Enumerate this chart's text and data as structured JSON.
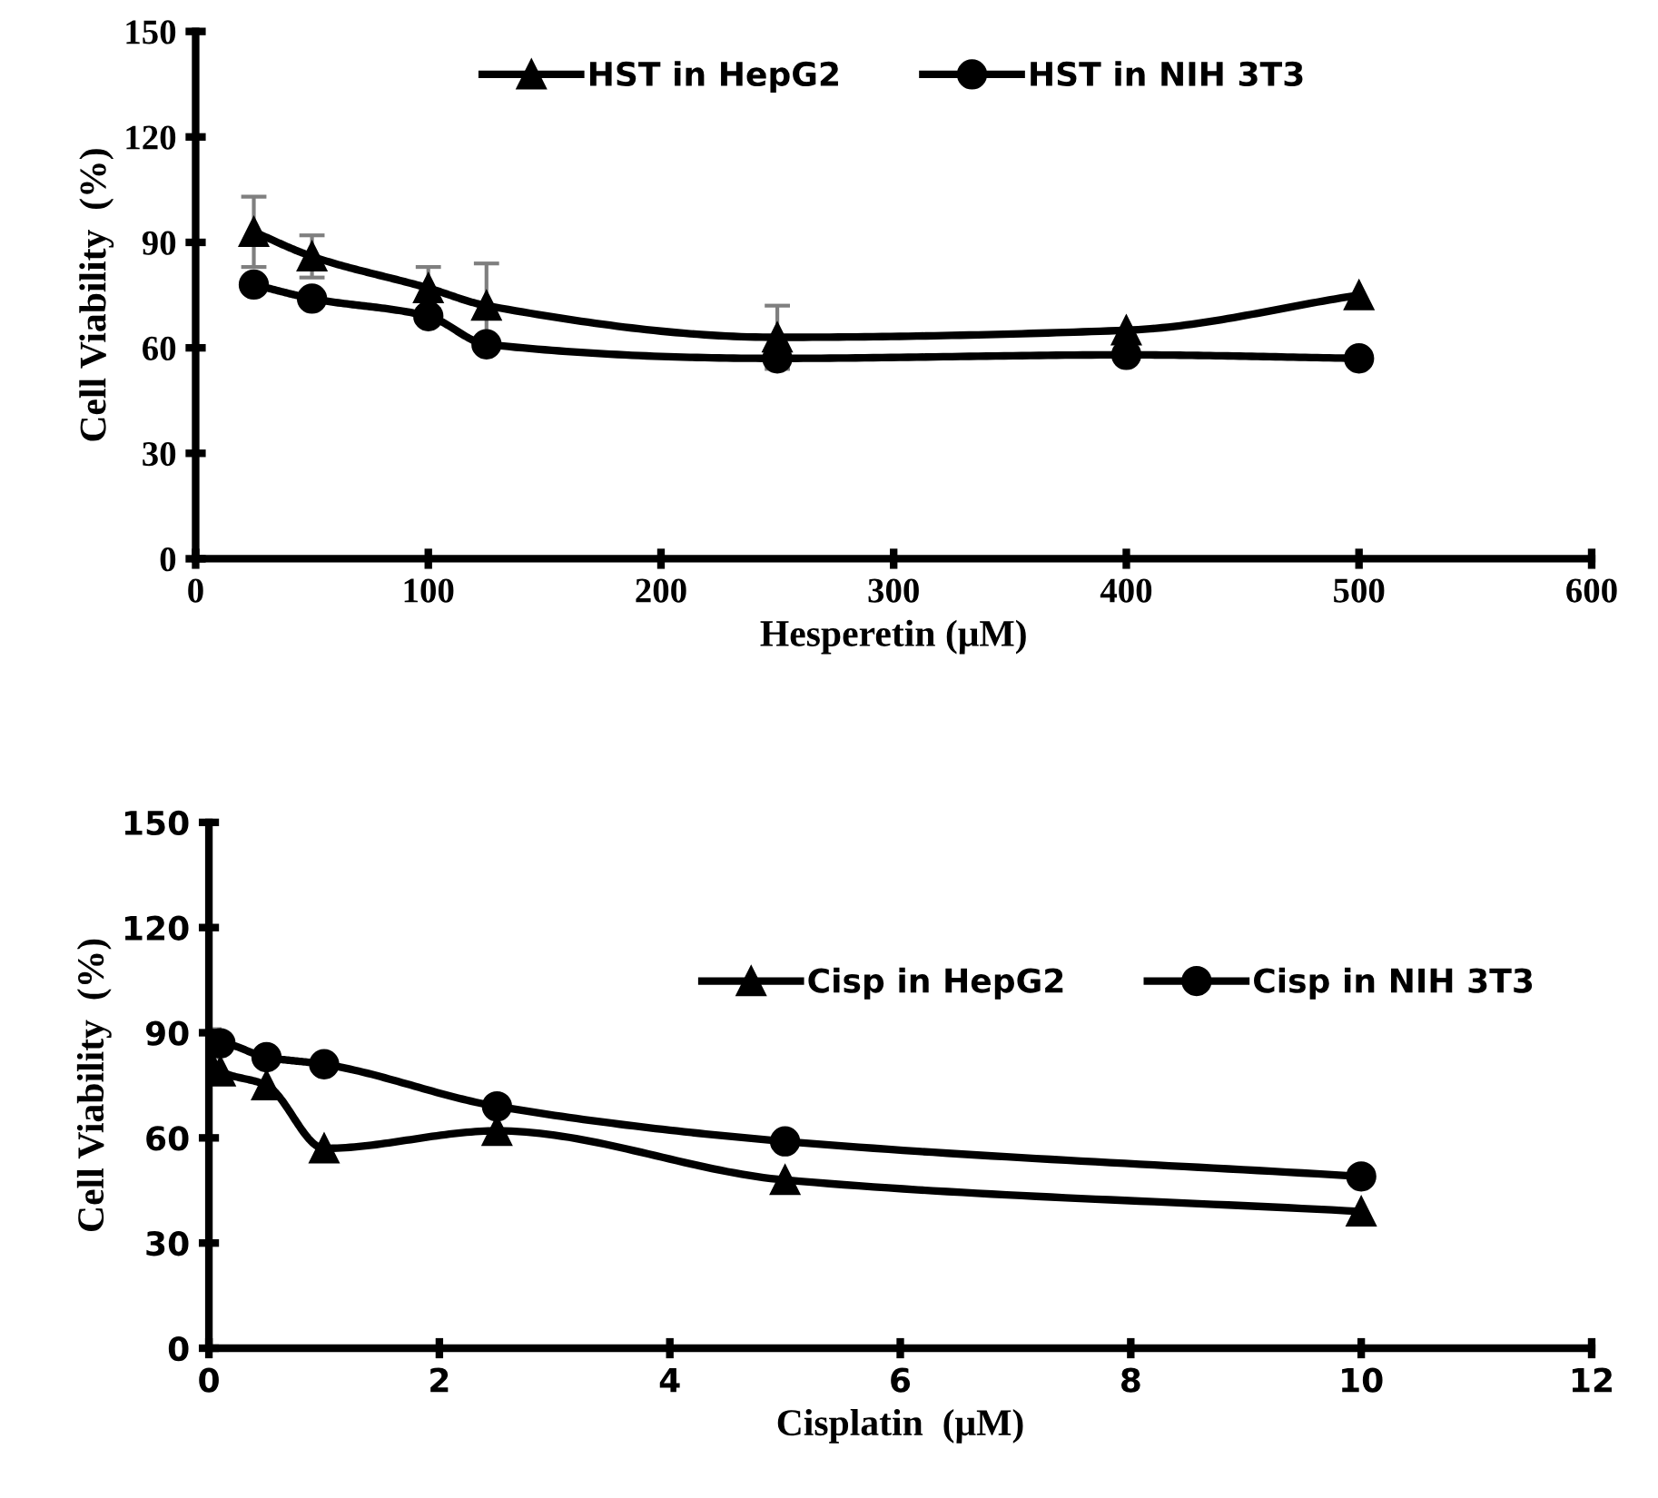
{
  "chart_data": [
    {
      "type": "line",
      "xlabel": "Hesperetin (μM)",
      "ylabel": "Cell Viability  (%)",
      "xlim": [
        0,
        600
      ],
      "xticks": [
        0,
        100,
        200,
        300,
        400,
        500,
        600
      ],
      "ylim": [
        0,
        150
      ],
      "yticks": [
        0,
        30,
        60,
        90,
        120,
        150
      ],
      "legend": "top",
      "grid": false,
      "series": [
        {
          "name": "HST in HepG2",
          "color": "#000000",
          "marker": "triangle",
          "x": [
            25,
            50,
            100,
            125,
            250,
            400,
            500
          ],
          "values": [
            93,
            86,
            77,
            72,
            63,
            65,
            75
          ],
          "errors": [
            10,
            6,
            6,
            12,
            9,
            null,
            null
          ]
        },
        {
          "name": "HST in NIH 3T3",
          "color": "#000000",
          "marker": "circle",
          "x": [
            25,
            50,
            100,
            125,
            250,
            400,
            500
          ],
          "values": [
            78,
            74,
            69,
            61,
            57,
            58,
            57
          ]
        }
      ]
    },
    {
      "type": "line",
      "xlabel": "Cisplatin  (μM)",
      "ylabel": "Cell Viability  (%)",
      "xlim": [
        0,
        12
      ],
      "xticks": [
        0,
        2,
        4,
        6,
        8,
        10,
        12
      ],
      "ylim": [
        0,
        150
      ],
      "yticks": [
        0,
        30,
        60,
        90,
        120,
        150
      ],
      "legend": "top right",
      "grid": false,
      "series": [
        {
          "name": "Cisp in HepG2",
          "color": "#000000",
          "marker": "triangle",
          "x": [
            0,
            0.1,
            0.5,
            1,
            2.5,
            5,
            10
          ],
          "values": [
            82,
            79,
            75,
            57,
            62,
            48,
            39
          ]
        },
        {
          "name": "Cisp in NIH 3T3",
          "color": "#000000",
          "marker": "circle",
          "x": [
            0,
            0.1,
            0.5,
            1,
            2.5,
            5,
            10
          ],
          "values": [
            87,
            87,
            83,
            81,
            69,
            59,
            49
          ],
          "errors": [
            4,
            null,
            null,
            null,
            null,
            null,
            null
          ]
        }
      ]
    }
  ]
}
